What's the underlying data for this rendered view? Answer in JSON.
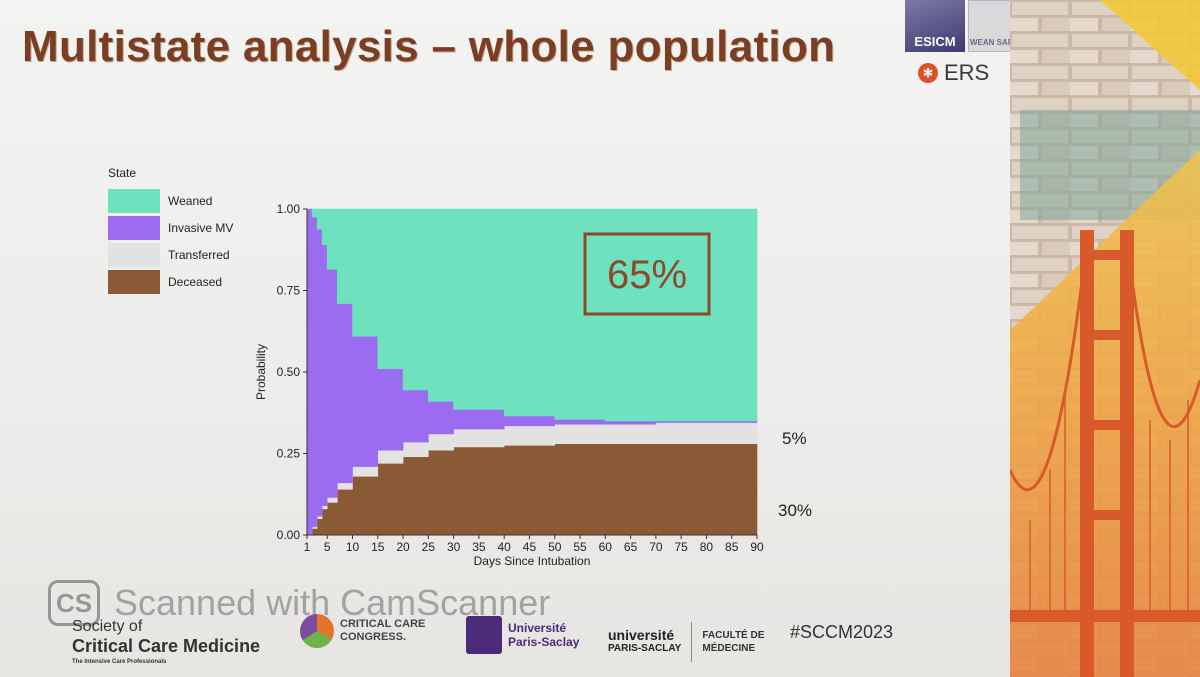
{
  "slide": {
    "title": "Multistate analysis – whole population"
  },
  "logos": {
    "esicm": "ESICM",
    "wean_safe": "WEAN SAFE",
    "ers": "ERS"
  },
  "chart_data": {
    "type": "area",
    "stacked": true,
    "xlabel": "Days Since Intubation",
    "ylabel": "Probability",
    "xlim": [
      1,
      90
    ],
    "ylim": [
      0,
      1
    ],
    "x_ticks": [
      1,
      5,
      10,
      15,
      20,
      25,
      30,
      35,
      40,
      45,
      50,
      55,
      60,
      65,
      70,
      75,
      80,
      85,
      90
    ],
    "y_ticks": [
      "0.00",
      "0.25",
      "0.50",
      "0.75",
      "1.00"
    ],
    "legend_title": "State",
    "legend_position": "left",
    "grid": false,
    "x": [
      1,
      2,
      3,
      4,
      5,
      7,
      10,
      15,
      20,
      25,
      30,
      40,
      50,
      60,
      70,
      80,
      90
    ],
    "series": [
      {
        "name": "Deceased",
        "color": "#8a5a36",
        "values": [
          0.0,
          0.02,
          0.05,
          0.08,
          0.1,
          0.14,
          0.18,
          0.22,
          0.24,
          0.26,
          0.27,
          0.275,
          0.28,
          0.28,
          0.28,
          0.28,
          0.28
        ]
      },
      {
        "name": "Transferred",
        "color": "#e2e2e2",
        "values": [
          0.0,
          0.005,
          0.008,
          0.01,
          0.015,
          0.02,
          0.03,
          0.04,
          0.045,
          0.05,
          0.055,
          0.06,
          0.06,
          0.06,
          0.065,
          0.065,
          0.065
        ]
      },
      {
        "name": "Invasive MV",
        "color": "#9b6cf0",
        "values": [
          1.0,
          0.95,
          0.88,
          0.8,
          0.7,
          0.55,
          0.4,
          0.25,
          0.16,
          0.1,
          0.06,
          0.03,
          0.015,
          0.01,
          0.005,
          0.005,
          0.005
        ]
      },
      {
        "name": "Weaned",
        "color": "#6ee1be",
        "values": [
          0.0,
          0.025,
          0.062,
          0.11,
          0.185,
          0.29,
          0.39,
          0.49,
          0.555,
          0.59,
          0.615,
          0.635,
          0.645,
          0.65,
          0.65,
          0.65,
          0.65
        ]
      }
    ],
    "annotations": [
      {
        "text": "65%",
        "boxed": true
      },
      {
        "text": "5%"
      },
      {
        "text": "30%"
      }
    ]
  },
  "footer": {
    "watermark_badge": "CS",
    "watermark_text": "Scanned with CamScanner",
    "sccm_line1": "Society of",
    "sccm_line2": "Critical Care Medicine",
    "sccm_line3": "The Intensive Care Professionals",
    "ccc_line1": "CRITICAL CARE",
    "ccc_line2": "CONGRESS.",
    "aphp_line1": "Université",
    "aphp_line2": "Paris-Saclay",
    "ups_line1": "université",
    "ups_line2": "PARIS-SACLAY",
    "faculty_line1": "FACULTÉ DE",
    "faculty_line2": "MÉDECINE",
    "hashtag": "#SCCM2023"
  }
}
